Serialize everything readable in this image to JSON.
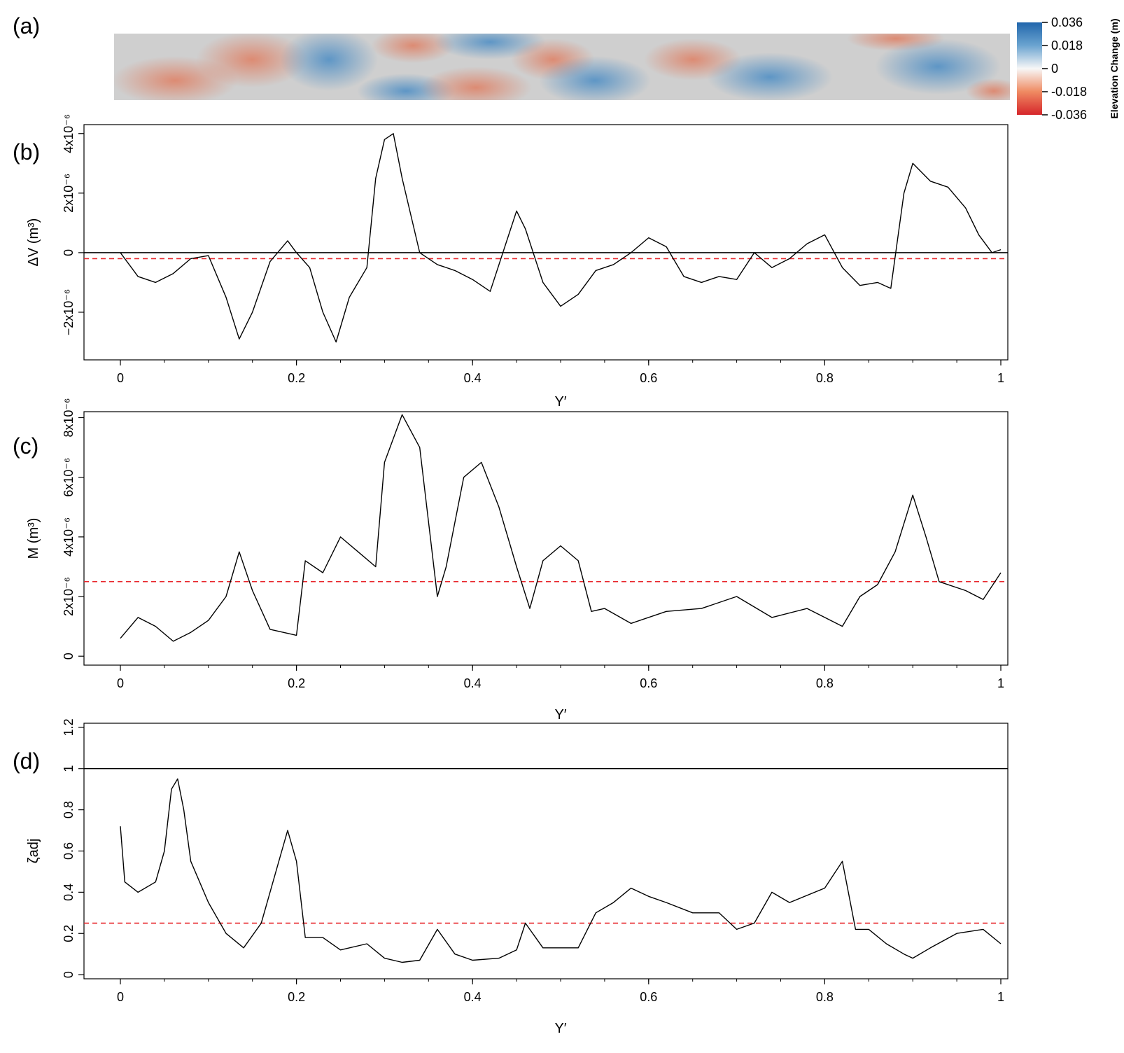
{
  "panels": {
    "a": {
      "label": "(a)"
    },
    "b": {
      "label": "(b)"
    },
    "c": {
      "label": "(c)"
    },
    "d": {
      "label": "(d)"
    }
  },
  "colorbar": {
    "title": "Elevation Change (m)",
    "tick_labels": [
      "0.036",
      "0.018",
      "0",
      "-0.018",
      "-0.036"
    ],
    "colors": {
      "positive": "#2166ac",
      "zero": "#f7f7f7",
      "negative": "#d6262b"
    }
  },
  "colors": {
    "series_line": "#000000",
    "threshold_line": "#e8262b",
    "reference_line": "#000000"
  },
  "chart_data": [
    {
      "panel": "(b)",
      "type": "line",
      "xlabel": "Y′",
      "ylabel": "ΔV (m³)",
      "xlim": [
        0,
        1
      ],
      "ylim": [
        -3.6e-06,
        4.3e-06
      ],
      "x_ticks": [
        0,
        0.2,
        0.4,
        0.6,
        0.8,
        1
      ],
      "x_tick_labels": [
        "0",
        "0.2",
        "0.4",
        "0.6",
        "0.8",
        "1"
      ],
      "y_ticks": [
        -2e-06,
        0,
        2e-06,
        4e-06
      ],
      "y_tick_labels": [
        "−2x10⁻⁶",
        "0",
        "2x10⁻⁶",
        "4x10⁻⁶"
      ],
      "reference_line": {
        "y": 0,
        "style": "solid"
      },
      "threshold_line": {
        "y": -2e-07,
        "style": "dashed"
      },
      "series": [
        {
          "x": [
            0,
            0.02,
            0.04,
            0.06,
            0.08,
            0.1,
            0.12,
            0.135,
            0.15,
            0.17,
            0.19,
            0.2,
            0.215,
            0.23,
            0.245,
            0.26,
            0.28,
            0.29,
            0.3,
            0.31,
            0.32,
            0.34,
            0.36,
            0.38,
            0.4,
            0.42,
            0.44,
            0.45,
            0.46,
            0.48,
            0.5,
            0.52,
            0.54,
            0.56,
            0.58,
            0.6,
            0.62,
            0.64,
            0.66,
            0.68,
            0.7,
            0.72,
            0.74,
            0.76,
            0.78,
            0.8,
            0.82,
            0.84,
            0.86,
            0.875,
            0.89,
            0.9,
            0.92,
            0.94,
            0.96,
            0.975,
            0.99,
            1
          ],
          "y": [
            0,
            -8e-07,
            -1e-06,
            -7e-07,
            -2e-07,
            -1e-07,
            -1.5e-06,
            -2.9e-06,
            -2e-06,
            -3e-07,
            4e-07,
            0,
            -5e-07,
            -2e-06,
            -3e-06,
            -1.5e-06,
            -5e-07,
            2.5e-06,
            3.8e-06,
            4e-06,
            2.5e-06,
            0,
            -4e-07,
            -6e-07,
            -9e-07,
            -1.3e-06,
            5e-07,
            1.4e-06,
            8e-07,
            -1e-06,
            -1.8e-06,
            -1.4e-06,
            -6e-07,
            -4e-07,
            0,
            5e-07,
            2e-07,
            -8e-07,
            -1e-06,
            -8e-07,
            -9e-07,
            0,
            -5e-07,
            -2e-07,
            3e-07,
            6e-07,
            -5e-07,
            -1.1e-06,
            -1e-06,
            -1.2e-06,
            2e-06,
            3e-06,
            2.4e-06,
            2.2e-06,
            1.5e-06,
            6e-07,
            0,
            1e-07
          ]
        }
      ]
    },
    {
      "panel": "(c)",
      "type": "line",
      "xlabel": "Y′",
      "ylabel": "M (m³)",
      "xlim": [
        0,
        1
      ],
      "ylim": [
        -3e-07,
        8.2e-06
      ],
      "x_ticks": [
        0,
        0.2,
        0.4,
        0.6,
        0.8,
        1
      ],
      "x_tick_labels": [
        "0",
        "0.2",
        "0.4",
        "0.6",
        "0.8",
        "1"
      ],
      "y_ticks": [
        0,
        2e-06,
        4e-06,
        6e-06,
        8e-06
      ],
      "y_tick_labels": [
        "0",
        "2x10⁻⁶",
        "4x10⁻⁶",
        "6x10⁻⁶",
        "8x10⁻⁶"
      ],
      "threshold_line": {
        "y": 2.5e-06,
        "style": "dashed"
      },
      "series": [
        {
          "x": [
            0,
            0.02,
            0.04,
            0.06,
            0.08,
            0.1,
            0.12,
            0.135,
            0.15,
            0.17,
            0.2,
            0.21,
            0.23,
            0.25,
            0.27,
            0.29,
            0.3,
            0.32,
            0.34,
            0.36,
            0.37,
            0.39,
            0.41,
            0.43,
            0.45,
            0.465,
            0.48,
            0.5,
            0.52,
            0.535,
            0.55,
            0.58,
            0.62,
            0.66,
            0.7,
            0.74,
            0.78,
            0.82,
            0.84,
            0.86,
            0.88,
            0.9,
            0.915,
            0.93,
            0.96,
            0.98,
            1
          ],
          "y": [
            6e-07,
            1.3e-06,
            1e-06,
            5e-07,
            8e-07,
            1.2e-06,
            2e-06,
            3.5e-06,
            2.2e-06,
            9e-07,
            7e-07,
            3.2e-06,
            2.8e-06,
            4e-06,
            3.5e-06,
            3e-06,
            6.5e-06,
            8.1e-06,
            7e-06,
            2e-06,
            3e-06,
            6e-06,
            6.5e-06,
            5e-06,
            3e-06,
            1.6e-06,
            3.2e-06,
            3.7e-06,
            3.2e-06,
            1.5e-06,
            1.6e-06,
            1.1e-06,
            1.5e-06,
            1.6e-06,
            2e-06,
            1.3e-06,
            1.6e-06,
            1e-06,
            2e-06,
            2.4e-06,
            3.5e-06,
            5.4e-06,
            4e-06,
            2.5e-06,
            2.2e-06,
            1.9e-06,
            2.8e-06
          ]
        }
      ]
    },
    {
      "panel": "(d)",
      "type": "line",
      "xlabel": "Y′",
      "ylabel": "ζadj",
      "xlim": [
        0,
        1
      ],
      "ylim": [
        -0.02,
        1.22
      ],
      "x_ticks": [
        0,
        0.2,
        0.4,
        0.6,
        0.8,
        1
      ],
      "x_tick_labels": [
        "0",
        "0.2",
        "0.4",
        "0.6",
        "0.8",
        "1"
      ],
      "y_ticks": [
        0,
        0.2,
        0.4,
        0.6,
        0.8,
        1,
        1.2
      ],
      "y_tick_labels": [
        "0",
        "0.2",
        "0.4",
        "0.6",
        "0.8",
        "1",
        "1.2"
      ],
      "reference_line": {
        "y": 1,
        "style": "solid"
      },
      "threshold_line": {
        "y": 0.25,
        "style": "dashed"
      },
      "series": [
        {
          "x": [
            0,
            0.005,
            0.02,
            0.04,
            0.05,
            0.058,
            0.065,
            0.072,
            0.08,
            0.1,
            0.12,
            0.14,
            0.16,
            0.18,
            0.19,
            0.2,
            0.21,
            0.23,
            0.25,
            0.28,
            0.3,
            0.32,
            0.34,
            0.36,
            0.38,
            0.4,
            0.43,
            0.45,
            0.46,
            0.48,
            0.52,
            0.54,
            0.56,
            0.58,
            0.6,
            0.62,
            0.65,
            0.68,
            0.7,
            0.72,
            0.74,
            0.76,
            0.8,
            0.82,
            0.835,
            0.85,
            0.87,
            0.89,
            0.9,
            0.92,
            0.95,
            0.98,
            1
          ],
          "y": [
            0.72,
            0.45,
            0.4,
            0.45,
            0.6,
            0.9,
            0.95,
            0.8,
            0.55,
            0.35,
            0.2,
            0.13,
            0.25,
            0.55,
            0.7,
            0.55,
            0.18,
            0.18,
            0.12,
            0.15,
            0.08,
            0.06,
            0.07,
            0.22,
            0.1,
            0.07,
            0.08,
            0.12,
            0.25,
            0.13,
            0.13,
            0.3,
            0.35,
            0.42,
            0.38,
            0.35,
            0.3,
            0.3,
            0.22,
            0.25,
            0.4,
            0.35,
            0.42,
            0.55,
            0.22,
            0.22,
            0.15,
            0.1,
            0.08,
            0.13,
            0.2,
            0.22,
            0.15
          ]
        }
      ]
    }
  ]
}
